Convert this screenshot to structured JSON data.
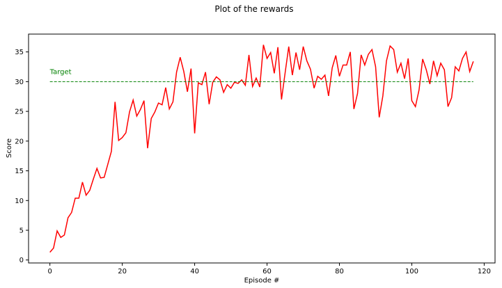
{
  "figure": {
    "suptitle": "Plot of the rewards"
  },
  "chart_data": {
    "type": "line",
    "title": "Plot of the rewards",
    "xlabel": "Episode #",
    "ylabel": "Score",
    "xlim": [
      -5.9,
      123
    ],
    "ylim": [
      -0.5,
      38
    ],
    "xticks": [
      0,
      20,
      40,
      60,
      80,
      100,
      120
    ],
    "yticks": [
      0,
      5,
      10,
      15,
      20,
      25,
      30,
      35
    ],
    "grid": false,
    "series": [
      {
        "color": "#ff0000",
        "style": "solid",
        "x": [
          0,
          1,
          2,
          3,
          4,
          5,
          6,
          7,
          8,
          9,
          10,
          11,
          12,
          13,
          14,
          15,
          16,
          17,
          18,
          19,
          20,
          21,
          22,
          23,
          24,
          25,
          26,
          27,
          28,
          29,
          30,
          31,
          32,
          33,
          34,
          35,
          36,
          37,
          38,
          39,
          40,
          41,
          42,
          43,
          44,
          45,
          46,
          47,
          48,
          49,
          50,
          51,
          52,
          53,
          54,
          55,
          56,
          57,
          58,
          59,
          60,
          61,
          62,
          63,
          64,
          65,
          66,
          67,
          68,
          69,
          70,
          71,
          72,
          73,
          74,
          75,
          76,
          77,
          78,
          79,
          80,
          81,
          82,
          83,
          84,
          85,
          86,
          87,
          88,
          89,
          90,
          91,
          92,
          93,
          94,
          95,
          96,
          97,
          98,
          99,
          100,
          101,
          102,
          103,
          104,
          105,
          106,
          107,
          108,
          109,
          110,
          111,
          112,
          113,
          114,
          115,
          116,
          117
        ],
        "values": [
          1.3,
          2.0,
          4.9,
          3.8,
          4.2,
          7.1,
          8.0,
          10.4,
          10.4,
          13.1,
          10.9,
          11.7,
          13.6,
          15.4,
          13.8,
          13.9,
          16.1,
          18.3,
          26.6,
          20.1,
          20.6,
          21.4,
          24.9,
          26.9,
          24.2,
          25.3,
          26.8,
          18.8,
          23.8,
          24.9,
          26.4,
          26.1,
          29.0,
          25.4,
          26.6,
          31.6,
          34.1,
          31.7,
          28.3,
          32.2,
          21.3,
          29.8,
          29.5,
          31.6,
          26.2,
          29.9,
          30.8,
          30.3,
          28.2,
          29.5,
          28.9,
          29.9,
          29.7,
          30.3,
          29.4,
          34.5,
          29.2,
          30.6,
          29.1,
          36.2,
          33.9,
          34.9,
          31.4,
          35.8,
          27.0,
          31.5,
          35.9,
          31.1,
          34.9,
          32.0,
          35.9,
          33.5,
          32.1,
          28.9,
          30.9,
          30.4,
          31.1,
          27.6,
          32.3,
          34.4,
          30.9,
          32.8,
          32.8,
          35.0,
          25.4,
          28.0,
          34.5,
          32.8,
          34.6,
          35.4,
          32.5,
          24.0,
          27.6,
          33.5,
          36.0,
          35.4,
          31.6,
          33.1,
          30.5,
          33.9,
          26.8,
          25.8,
          28.6,
          33.8,
          32.0,
          29.6,
          33.5,
          31.0,
          33.1,
          32.0,
          25.8,
          27.3,
          32.5,
          31.8,
          33.9,
          35.0,
          31.7,
          33.4
        ]
      },
      {
        "name": "Target",
        "color": "#008000",
        "style": "dashed",
        "x": [
          0,
          117
        ],
        "values": [
          30,
          30
        ]
      }
    ],
    "annotations": [
      {
        "text": "Target",
        "x": 0,
        "y": 31.3,
        "color": "#008000"
      }
    ]
  }
}
